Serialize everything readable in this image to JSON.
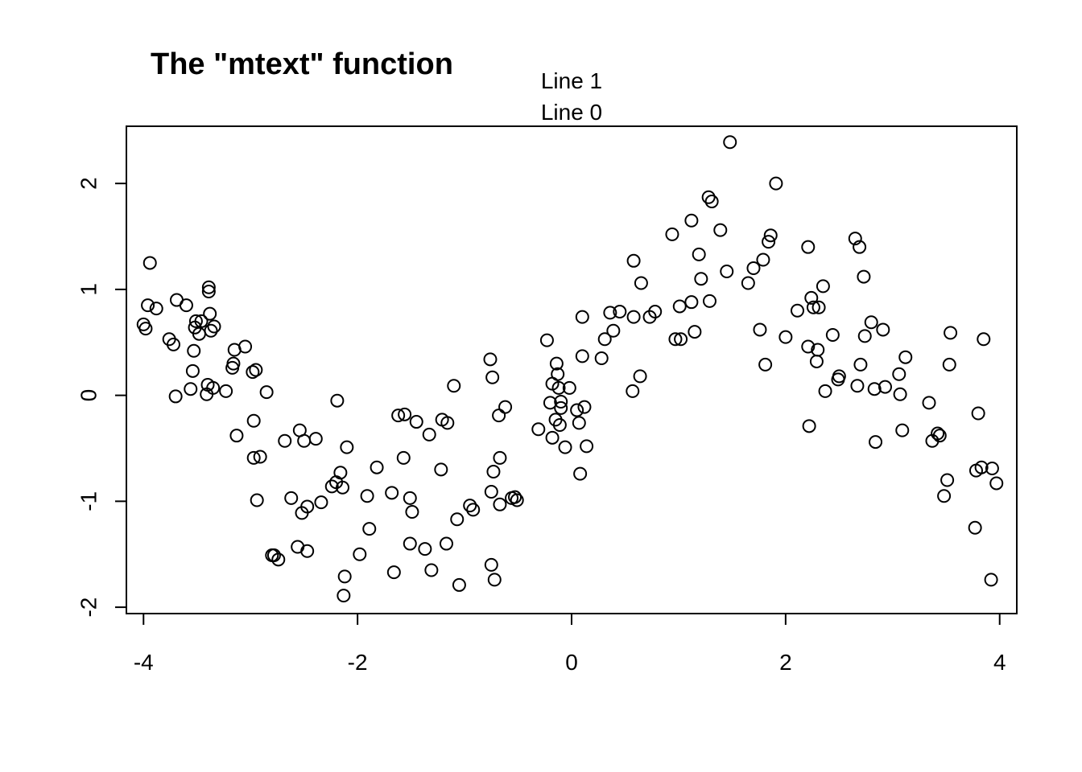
{
  "chart_data": {
    "type": "scatter",
    "title": "The \"mtext\" function",
    "margin_text": [
      "Line 1",
      "Line 0"
    ],
    "xlabel": "",
    "ylabel": "",
    "xlim": [
      -4.16,
      4.16
    ],
    "ylim": [
      -2.06,
      2.54
    ],
    "x_ticks": [
      -4,
      -2,
      0,
      2,
      4
    ],
    "x_tick_labels": [
      "-4",
      "-2",
      "0",
      "2",
      "4"
    ],
    "y_ticks": [
      -2,
      -1,
      0,
      1,
      2
    ],
    "y_tick_labels": [
      "-2",
      "-1",
      "0",
      "1",
      "2"
    ],
    "grid": false,
    "marker": "open-circle",
    "points": [
      [
        -4.0,
        0.67
      ],
      [
        -3.98,
        0.63
      ],
      [
        -3.96,
        0.85
      ],
      [
        -3.94,
        1.25
      ],
      [
        -3.88,
        0.82
      ],
      [
        -3.76,
        0.53
      ],
      [
        -3.72,
        0.48
      ],
      [
        -3.7,
        -0.01
      ],
      [
        -3.69,
        0.9
      ],
      [
        -3.6,
        0.85
      ],
      [
        -3.56,
        0.06
      ],
      [
        -3.54,
        0.23
      ],
      [
        -3.53,
        0.42
      ],
      [
        -3.52,
        0.64
      ],
      [
        -3.51,
        0.7
      ],
      [
        -3.48,
        0.58
      ],
      [
        -3.46,
        0.7
      ],
      [
        -3.41,
        0.01
      ],
      [
        -3.4,
        0.1
      ],
      [
        -3.39,
        1.02
      ],
      [
        -3.39,
        0.98
      ],
      [
        -3.38,
        0.77
      ],
      [
        -3.37,
        0.61
      ],
      [
        -3.35,
        0.07
      ],
      [
        -3.34,
        0.65
      ],
      [
        -3.23,
        0.04
      ],
      [
        -3.17,
        0.26
      ],
      [
        -3.16,
        0.3
      ],
      [
        -3.15,
        0.43
      ],
      [
        -3.13,
        -0.38
      ],
      [
        -3.05,
        0.46
      ],
      [
        -2.98,
        0.22
      ],
      [
        -2.97,
        -0.24
      ],
      [
        -2.97,
        -0.59
      ],
      [
        -2.95,
        0.24
      ],
      [
        -2.94,
        -0.99
      ],
      [
        -2.91,
        -0.58
      ],
      [
        -2.85,
        0.03
      ],
      [
        -2.8,
        -1.51
      ],
      [
        -2.78,
        -1.51
      ],
      [
        -2.74,
        -1.55
      ],
      [
        -2.68,
        -0.43
      ],
      [
        -2.62,
        -0.97
      ],
      [
        -2.56,
        -1.43
      ],
      [
        -2.54,
        -0.33
      ],
      [
        -2.52,
        -1.11
      ],
      [
        -2.5,
        -0.43
      ],
      [
        -2.47,
        -1.05
      ],
      [
        -2.47,
        -1.47
      ],
      [
        -2.39,
        -0.41
      ],
      [
        -2.34,
        -1.01
      ],
      [
        -2.24,
        -0.86
      ],
      [
        -2.2,
        -0.82
      ],
      [
        -2.19,
        -0.05
      ],
      [
        -2.16,
        -0.73
      ],
      [
        -2.14,
        -0.87
      ],
      [
        -2.13,
        -1.89
      ],
      [
        -2.12,
        -1.71
      ],
      [
        -2.1,
        -0.49
      ],
      [
        -1.98,
        -1.5
      ],
      [
        -1.91,
        -0.95
      ],
      [
        -1.89,
        -1.26
      ],
      [
        -1.82,
        -0.68
      ],
      [
        -1.68,
        -0.92
      ],
      [
        -1.66,
        -1.67
      ],
      [
        -1.62,
        -0.19
      ],
      [
        -1.57,
        -0.59
      ],
      [
        -1.56,
        -0.18
      ],
      [
        -1.51,
        -1.4
      ],
      [
        -1.51,
        -0.97
      ],
      [
        -1.49,
        -1.1
      ],
      [
        -1.45,
        -0.25
      ],
      [
        -1.37,
        -1.45
      ],
      [
        -1.33,
        -0.37
      ],
      [
        -1.31,
        -1.65
      ],
      [
        -1.22,
        -0.7
      ],
      [
        -1.21,
        -0.23
      ],
      [
        -1.17,
        -1.4
      ],
      [
        -1.16,
        -0.26
      ],
      [
        -1.1,
        0.09
      ],
      [
        -1.07,
        -1.17
      ],
      [
        -1.05,
        -1.79
      ],
      [
        -0.95,
        -1.04
      ],
      [
        -0.92,
        -1.08
      ],
      [
        -0.76,
        0.34
      ],
      [
        -0.75,
        -1.6
      ],
      [
        -0.75,
        -0.91
      ],
      [
        -0.74,
        0.17
      ],
      [
        -0.73,
        -0.72
      ],
      [
        -0.72,
        -1.74
      ],
      [
        -0.68,
        -0.19
      ],
      [
        -0.67,
        -0.59
      ],
      [
        -0.67,
        -1.03
      ],
      [
        -0.62,
        -0.11
      ],
      [
        -0.56,
        -0.97
      ],
      [
        -0.53,
        -0.96
      ],
      [
        -0.51,
        -0.99
      ],
      [
        -0.31,
        -0.32
      ],
      [
        -0.23,
        0.52
      ],
      [
        -0.2,
        -0.07
      ],
      [
        -0.18,
        0.11
      ],
      [
        -0.18,
        -0.4
      ],
      [
        -0.15,
        -0.23
      ],
      [
        -0.14,
        0.3
      ],
      [
        -0.13,
        0.2
      ],
      [
        -0.12,
        0.07
      ],
      [
        -0.11,
        -0.28
      ],
      [
        -0.1,
        -0.06
      ],
      [
        -0.1,
        -0.12
      ],
      [
        -0.06,
        -0.49
      ],
      [
        -0.02,
        0.07
      ],
      [
        0.05,
        -0.14
      ],
      [
        0.07,
        -0.26
      ],
      [
        0.08,
        -0.74
      ],
      [
        0.1,
        0.37
      ],
      [
        0.1,
        0.74
      ],
      [
        0.12,
        -0.11
      ],
      [
        0.14,
        -0.48
      ],
      [
        0.28,
        0.35
      ],
      [
        0.31,
        0.53
      ],
      [
        0.36,
        0.78
      ],
      [
        0.39,
        0.61
      ],
      [
        0.45,
        0.79
      ],
      [
        0.57,
        0.04
      ],
      [
        0.58,
        0.74
      ],
      [
        0.58,
        1.27
      ],
      [
        0.64,
        0.18
      ],
      [
        0.65,
        1.06
      ],
      [
        0.73,
        0.74
      ],
      [
        0.78,
        0.79
      ],
      [
        0.94,
        1.52
      ],
      [
        0.97,
        0.53
      ],
      [
        1.01,
        0.84
      ],
      [
        1.02,
        0.53
      ],
      [
        1.12,
        1.65
      ],
      [
        1.12,
        0.88
      ],
      [
        1.15,
        0.6
      ],
      [
        1.19,
        1.33
      ],
      [
        1.21,
        1.1
      ],
      [
        1.28,
        1.87
      ],
      [
        1.29,
        0.89
      ],
      [
        1.31,
        1.83
      ],
      [
        1.39,
        1.56
      ],
      [
        1.45,
        1.17
      ],
      [
        1.48,
        2.39
      ],
      [
        1.65,
        1.06
      ],
      [
        1.7,
        1.2
      ],
      [
        1.76,
        0.62
      ],
      [
        1.79,
        1.28
      ],
      [
        1.81,
        0.29
      ],
      [
        1.84,
        1.45
      ],
      [
        1.86,
        1.51
      ],
      [
        1.91,
        2.0
      ],
      [
        2.0,
        0.55
      ],
      [
        2.11,
        0.8
      ],
      [
        2.21,
        1.4
      ],
      [
        2.21,
        0.46
      ],
      [
        2.22,
        -0.29
      ],
      [
        2.24,
        0.92
      ],
      [
        2.26,
        0.83
      ],
      [
        2.29,
        0.32
      ],
      [
        2.3,
        0.43
      ],
      [
        2.31,
        0.83
      ],
      [
        2.35,
        1.03
      ],
      [
        2.37,
        0.04
      ],
      [
        2.44,
        0.57
      ],
      [
        2.49,
        0.15
      ],
      [
        2.5,
        0.18
      ],
      [
        2.65,
        1.48
      ],
      [
        2.67,
        0.09
      ],
      [
        2.69,
        1.4
      ],
      [
        2.7,
        0.29
      ],
      [
        2.73,
        1.12
      ],
      [
        2.74,
        0.56
      ],
      [
        2.8,
        0.69
      ],
      [
        2.83,
        0.06
      ],
      [
        2.84,
        -0.44
      ],
      [
        2.91,
        0.62
      ],
      [
        2.93,
        0.08
      ],
      [
        3.06,
        0.2
      ],
      [
        3.07,
        0.01
      ],
      [
        3.09,
        -0.33
      ],
      [
        3.12,
        0.36
      ],
      [
        3.34,
        -0.07
      ],
      [
        3.37,
        -0.43
      ],
      [
        3.42,
        -0.36
      ],
      [
        3.44,
        -0.38
      ],
      [
        3.48,
        -0.95
      ],
      [
        3.51,
        -0.8
      ],
      [
        3.53,
        0.29
      ],
      [
        3.54,
        0.59
      ],
      [
        3.77,
        -1.25
      ],
      [
        3.78,
        -0.71
      ],
      [
        3.8,
        -0.17
      ],
      [
        3.83,
        -0.68
      ],
      [
        3.85,
        0.53
      ],
      [
        3.92,
        -1.74
      ],
      [
        3.93,
        -0.69
      ],
      [
        3.97,
        -0.83
      ]
    ]
  }
}
